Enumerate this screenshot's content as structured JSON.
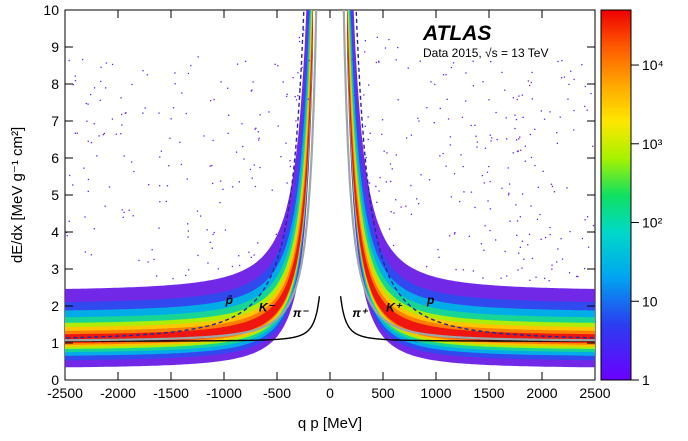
{
  "chart_data": {
    "type": "heatmap",
    "experiment": "ATLAS",
    "dataset": "Data 2015, √s = 13 TeV",
    "xlabel": "q p [MeV]",
    "ylabel": "dE/dx  [MeV g⁻¹ cm²]",
    "xlim": [
      -2500,
      2500
    ],
    "ylim": [
      0,
      10
    ],
    "xticks": [
      -2500,
      -2000,
      -1500,
      -1000,
      -500,
      0,
      500,
      1000,
      1500,
      2000,
      2500
    ],
    "yticks": [
      0,
      1,
      2,
      3,
      4,
      5,
      6,
      7,
      8,
      9,
      10
    ],
    "colorbar": {
      "scale": "log",
      "range": [
        1,
        50000
      ],
      "ticks": [
        {
          "value": 1,
          "label": "1"
        },
        {
          "value": 10,
          "label": "10"
        },
        {
          "value": 100,
          "label": "10²"
        },
        {
          "value": 1000,
          "label": "10³"
        },
        {
          "value": 10000,
          "label": "10⁴"
        }
      ]
    },
    "particle_labels": [
      {
        "text": "p̄",
        "q": -1,
        "x": -950,
        "y": 2.05
      },
      {
        "text": "K⁻",
        "q": -1,
        "x": -600,
        "y": 1.85
      },
      {
        "text": "π⁻",
        "q": -1,
        "x": -280,
        "y": 1.7
      },
      {
        "text": "π⁺",
        "q": 1,
        "x": 280,
        "y": 1.7
      },
      {
        "text": "K⁺",
        "q": 1,
        "x": 600,
        "y": 1.85
      },
      {
        "text": "p",
        "q": 1,
        "x": 950,
        "y": 2.05
      }
    ],
    "curves": [
      {
        "particle": "pion",
        "mass_MeV": 140,
        "style": "solid",
        "color": "#000000"
      },
      {
        "particle": "kaon",
        "mass_MeV": 494,
        "style": "solid",
        "color": "#9aa8a8"
      },
      {
        "particle": "proton",
        "mass_MeV": 938,
        "style": "dashed",
        "color": "#1f2a9a"
      }
    ],
    "colors": {
      "band_peak": "#ee1111",
      "band_outer": "#6a1ee6",
      "pion_curve": "#000000",
      "kaon_curve": "#9aa8a8",
      "proton_curve": "#1f2a9a"
    }
  }
}
